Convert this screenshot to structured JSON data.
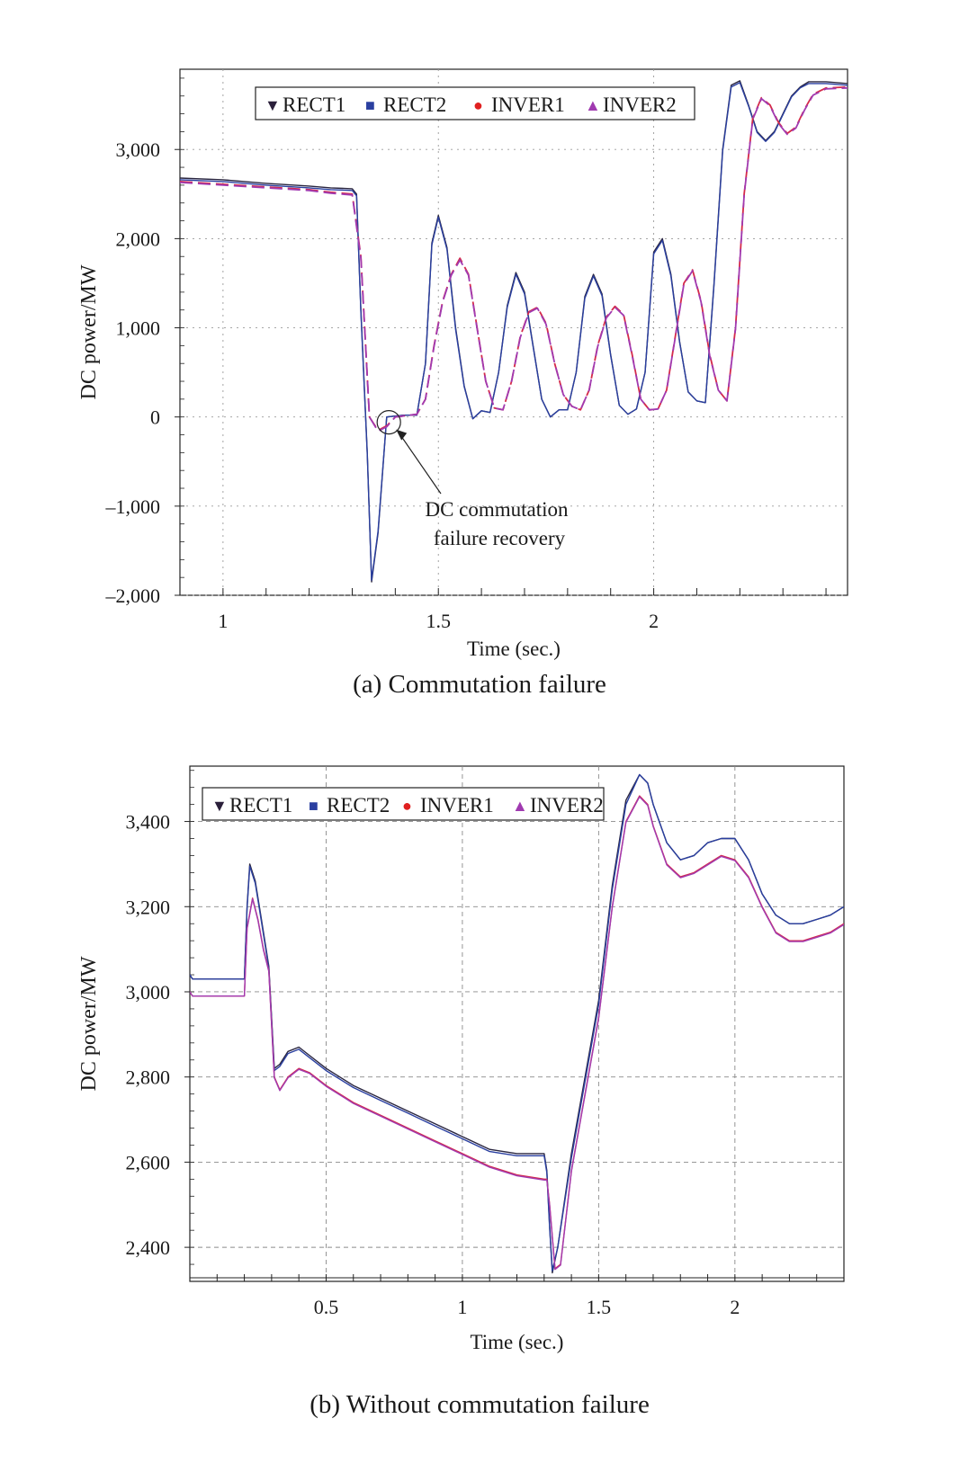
{
  "chart_data": [
    {
      "type": "line",
      "caption": "(a) Commutation failure",
      "xlabel": "Time (sec.)",
      "ylabel": "DC power/MW",
      "xlim": [
        0.9,
        2.45
      ],
      "ylim": [
        -2000,
        3900
      ],
      "xticks": [
        1,
        1.5,
        2
      ],
      "xtick_labels": [
        "1",
        "1.5",
        "2"
      ],
      "yticks": [
        -2000,
        -1000,
        0,
        1000,
        2000,
        3000
      ],
      "ytick_labels": [
        "–2,000",
        "–1,000",
        "0",
        "1,000",
        "2,000",
        "3,000"
      ],
      "grid": "dotted",
      "legend_position": "top-left",
      "legend": [
        {
          "marker": "▼",
          "label": "RECT1",
          "color": "#2a1f3a"
        },
        {
          "marker": "■",
          "label": "RECT2",
          "color": "#2a3fa0"
        },
        {
          "marker": "●",
          "label": "INVER1",
          "color": "#e02020"
        },
        {
          "marker": "▲",
          "label": "INVER2",
          "color": "#a03ab0"
        }
      ],
      "annotation": {
        "line1": "DC commutation",
        "line2": "failure recovery",
        "point": [
          1.385,
          -60
        ]
      },
      "series": [
        {
          "name": "RECT1",
          "color": "#2a2640",
          "dash": "solid",
          "x": [
            0.9,
            1.0,
            1.1,
            1.2,
            1.25,
            1.3,
            1.31,
            1.32,
            1.335,
            1.345,
            1.36,
            1.38,
            1.42,
            1.45,
            1.47,
            1.485,
            1.5,
            1.52,
            1.54,
            1.56,
            1.58,
            1.6,
            1.62,
            1.64,
            1.66,
            1.68,
            1.7,
            1.72,
            1.74,
            1.76,
            1.78,
            1.8,
            1.82,
            1.84,
            1.86,
            1.88,
            1.9,
            1.92,
            1.94,
            1.96,
            1.98,
            2.0,
            2.02,
            2.04,
            2.06,
            2.08,
            2.1,
            2.12,
            2.14,
            2.16,
            2.18,
            2.2,
            2.22,
            2.24,
            2.26,
            2.28,
            2.3,
            2.32,
            2.34,
            2.36,
            2.38,
            2.4,
            2.45
          ],
          "y": [
            2680,
            2660,
            2620,
            2590,
            2570,
            2560,
            2500,
            1200,
            -400,
            -1850,
            -1300,
            0,
            20,
            20,
            600,
            1950,
            2260,
            1900,
            1000,
            350,
            -20,
            70,
            50,
            500,
            1250,
            1620,
            1400,
            800,
            200,
            0,
            80,
            80,
            500,
            1350,
            1600,
            1380,
            700,
            130,
            30,
            90,
            500,
            1850,
            2000,
            1600,
            850,
            280,
            180,
            160,
            1500,
            3000,
            3720,
            3770,
            3500,
            3200,
            3100,
            3200,
            3400,
            3600,
            3700,
            3760,
            3760,
            3760,
            3740
          ]
        },
        {
          "name": "RECT2",
          "color": "#2a3fa0",
          "dash": "solid",
          "x": [
            0.9,
            1.0,
            1.1,
            1.2,
            1.25,
            1.3,
            1.31,
            1.32,
            1.335,
            1.345,
            1.36,
            1.38,
            1.42,
            1.45,
            1.47,
            1.485,
            1.5,
            1.52,
            1.54,
            1.56,
            1.58,
            1.6,
            1.62,
            1.64,
            1.66,
            1.68,
            1.7,
            1.72,
            1.74,
            1.76,
            1.78,
            1.8,
            1.82,
            1.84,
            1.86,
            1.88,
            1.9,
            1.92,
            1.94,
            1.96,
            1.98,
            2.0,
            2.02,
            2.04,
            2.06,
            2.08,
            2.1,
            2.12,
            2.14,
            2.16,
            2.18,
            2.2,
            2.22,
            2.24,
            2.26,
            2.28,
            2.3,
            2.32,
            2.34,
            2.36,
            2.38,
            2.4,
            2.45
          ],
          "y": [
            2660,
            2640,
            2600,
            2570,
            2550,
            2540,
            2480,
            1180,
            -420,
            -1830,
            -1280,
            0,
            20,
            20,
            600,
            1930,
            2240,
            1880,
            980,
            340,
            -20,
            70,
            50,
            500,
            1230,
            1600,
            1380,
            790,
            200,
            0,
            80,
            80,
            500,
            1330,
            1580,
            1360,
            690,
            130,
            30,
            90,
            500,
            1830,
            1980,
            1580,
            840,
            280,
            180,
            160,
            1480,
            2980,
            3700,
            3750,
            3490,
            3190,
            3090,
            3190,
            3390,
            3590,
            3690,
            3740,
            3740,
            3740,
            3720
          ]
        },
        {
          "name": "INVER1",
          "color": "#d42a4a",
          "dash": "dashed",
          "x": [
            0.9,
            1.0,
            1.1,
            1.2,
            1.25,
            1.3,
            1.32,
            1.34,
            1.36,
            1.38,
            1.4,
            1.45,
            1.47,
            1.49,
            1.51,
            1.53,
            1.55,
            1.57,
            1.59,
            1.61,
            1.63,
            1.65,
            1.67,
            1.69,
            1.71,
            1.73,
            1.75,
            1.77,
            1.79,
            1.81,
            1.83,
            1.85,
            1.87,
            1.89,
            1.91,
            1.93,
            1.95,
            1.97,
            1.99,
            2.01,
            2.03,
            2.05,
            2.07,
            2.09,
            2.11,
            2.13,
            2.15,
            2.17,
            2.19,
            2.21,
            2.23,
            2.25,
            2.27,
            2.29,
            2.31,
            2.33,
            2.35,
            2.37,
            2.4,
            2.45
          ],
          "y": [
            2640,
            2610,
            2580,
            2550,
            2520,
            2500,
            1800,
            0,
            -150,
            -100,
            0,
            30,
            200,
            800,
            1300,
            1600,
            1780,
            1600,
            1000,
            400,
            100,
            80,
            400,
            900,
            1180,
            1230,
            1050,
            600,
            250,
            120,
            80,
            300,
            800,
            1120,
            1240,
            1150,
            700,
            200,
            80,
            90,
            300,
            900,
            1500,
            1650,
            1300,
            700,
            300,
            180,
            1000,
            2500,
            3350,
            3580,
            3500,
            3300,
            3180,
            3250,
            3450,
            3620,
            3690,
            3700
          ]
        },
        {
          "name": "INVER2",
          "color": "#a13ab0",
          "dash": "dashed",
          "x": [
            0.9,
            1.0,
            1.1,
            1.2,
            1.25,
            1.3,
            1.32,
            1.34,
            1.36,
            1.38,
            1.4,
            1.45,
            1.47,
            1.49,
            1.51,
            1.53,
            1.55,
            1.57,
            1.59,
            1.61,
            1.63,
            1.65,
            1.67,
            1.69,
            1.71,
            1.73,
            1.75,
            1.77,
            1.79,
            1.81,
            1.83,
            1.85,
            1.87,
            1.89,
            1.91,
            1.93,
            1.95,
            1.97,
            1.99,
            2.01,
            2.03,
            2.05,
            2.07,
            2.09,
            2.11,
            2.13,
            2.15,
            2.17,
            2.19,
            2.21,
            2.23,
            2.25,
            2.27,
            2.29,
            2.31,
            2.33,
            2.35,
            2.37,
            2.4,
            2.45
          ],
          "y": [
            2630,
            2600,
            2570,
            2540,
            2510,
            2490,
            1780,
            0,
            -160,
            -110,
            0,
            30,
            200,
            790,
            1290,
            1590,
            1760,
            1590,
            990,
            400,
            100,
            80,
            400,
            890,
            1170,
            1220,
            1040,
            600,
            250,
            120,
            80,
            300,
            790,
            1110,
            1230,
            1140,
            690,
            200,
            80,
            90,
            300,
            890,
            1490,
            1640,
            1290,
            690,
            300,
            180,
            990,
            2490,
            3340,
            3570,
            3490,
            3290,
            3170,
            3240,
            3440,
            3610,
            3680,
            3690
          ]
        }
      ]
    },
    {
      "type": "line",
      "caption": "(b) Without commutation failure",
      "xlabel": "Time (sec.)",
      "ylabel": "DC power/MW",
      "xlim": [
        0.0,
        2.4
      ],
      "ylim": [
        2320,
        3530
      ],
      "xticks": [
        0.5,
        1,
        1.5,
        2
      ],
      "xtick_labels": [
        "0.5",
        "1",
        "1.5",
        "2"
      ],
      "yticks": [
        2400,
        2600,
        2800,
        3000,
        3200,
        3400
      ],
      "ytick_labels": [
        "2,400",
        "2,600",
        "2,800",
        "3,000",
        "3,200",
        "3,400"
      ],
      "grid": "dashed",
      "legend_position": "top-left",
      "legend": [
        {
          "marker": "▼",
          "label": "RECT1",
          "color": "#2a1f3a"
        },
        {
          "marker": "■",
          "label": "RECT2",
          "color": "#2a3fa0"
        },
        {
          "marker": "●",
          "label": "INVER1",
          "color": "#e02020"
        },
        {
          "marker": "▲",
          "label": "INVER2",
          "color": "#a03ab0"
        }
      ],
      "series": [
        {
          "name": "RECT1",
          "color": "#2a2640",
          "dash": "solid",
          "x": [
            0.0,
            0.01,
            0.2,
            0.21,
            0.22,
            0.24,
            0.26,
            0.29,
            0.31,
            0.33,
            0.36,
            0.4,
            0.44,
            0.5,
            0.6,
            0.7,
            0.8,
            0.9,
            1.0,
            1.1,
            1.2,
            1.3,
            1.31,
            1.32,
            1.33,
            1.35,
            1.4,
            1.5,
            1.55,
            1.6,
            1.65,
            1.68,
            1.7,
            1.75,
            1.8,
            1.85,
            1.9,
            1.95,
            2.0,
            2.05,
            2.1,
            2.15,
            2.2,
            2.25,
            2.3,
            2.35,
            2.4
          ],
          "y": [
            3040,
            3030,
            3030,
            3200,
            3300,
            3260,
            3180,
            3060,
            2820,
            2830,
            2860,
            2870,
            2850,
            2820,
            2780,
            2750,
            2720,
            2690,
            2660,
            2630,
            2620,
            2620,
            2580,
            2450,
            2340,
            2400,
            2620,
            2980,
            3250,
            3450,
            3510,
            3490,
            3440,
            3350,
            3310,
            3320,
            3350,
            3360,
            3360,
            3310,
            3230,
            3180,
            3160,
            3160,
            3170,
            3180,
            3200
          ]
        },
        {
          "name": "RECT2",
          "color": "#2a3fa0",
          "dash": "solid",
          "x": [
            0.0,
            0.01,
            0.2,
            0.21,
            0.22,
            0.24,
            0.26,
            0.29,
            0.31,
            0.33,
            0.36,
            0.4,
            0.44,
            0.5,
            0.6,
            0.7,
            0.8,
            0.9,
            1.0,
            1.1,
            1.2,
            1.3,
            1.31,
            1.32,
            1.33,
            1.35,
            1.4,
            1.5,
            1.55,
            1.6,
            1.65,
            1.68,
            1.7,
            1.75,
            1.8,
            1.85,
            1.9,
            1.95,
            2.0,
            2.05,
            2.1,
            2.15,
            2.2,
            2.25,
            2.3,
            2.35,
            2.4
          ],
          "y": [
            3040,
            3030,
            3030,
            3195,
            3295,
            3255,
            3175,
            3055,
            2815,
            2825,
            2855,
            2865,
            2845,
            2815,
            2775,
            2745,
            2715,
            2685,
            2655,
            2625,
            2615,
            2615,
            2575,
            2445,
            2345,
            2400,
            2610,
            2970,
            3240,
            3440,
            3510,
            3490,
            3440,
            3350,
            3310,
            3320,
            3350,
            3360,
            3360,
            3310,
            3230,
            3180,
            3160,
            3160,
            3170,
            3180,
            3200
          ]
        },
        {
          "name": "INVER1",
          "color": "#d42a4a",
          "dash": "solid",
          "x": [
            0.0,
            0.01,
            0.2,
            0.21,
            0.23,
            0.25,
            0.27,
            0.29,
            0.31,
            0.33,
            0.36,
            0.4,
            0.44,
            0.5,
            0.6,
            0.7,
            0.8,
            0.9,
            1.0,
            1.1,
            1.2,
            1.3,
            1.31,
            1.32,
            1.34,
            1.36,
            1.4,
            1.5,
            1.55,
            1.6,
            1.65,
            1.68,
            1.7,
            1.75,
            1.8,
            1.85,
            1.9,
            1.95,
            2.0,
            2.05,
            2.1,
            2.15,
            2.2,
            2.25,
            2.3,
            2.35,
            2.4
          ],
          "y": [
            3000,
            2990,
            2990,
            3150,
            3220,
            3170,
            3100,
            3050,
            2800,
            2770,
            2800,
            2820,
            2810,
            2780,
            2740,
            2710,
            2680,
            2650,
            2620,
            2590,
            2570,
            2560,
            2560,
            2500,
            2350,
            2360,
            2580,
            2940,
            3200,
            3400,
            3460,
            3440,
            3390,
            3300,
            3270,
            3280,
            3300,
            3320,
            3310,
            3270,
            3200,
            3140,
            3120,
            3120,
            3130,
            3140,
            3160
          ]
        },
        {
          "name": "INVER2",
          "color": "#a13ab0",
          "dash": "solid",
          "x": [
            0.0,
            0.01,
            0.2,
            0.21,
            0.23,
            0.25,
            0.27,
            0.29,
            0.31,
            0.33,
            0.36,
            0.4,
            0.44,
            0.5,
            0.6,
            0.7,
            0.8,
            0.9,
            1.0,
            1.1,
            1.2,
            1.3,
            1.31,
            1.32,
            1.34,
            1.36,
            1.4,
            1.5,
            1.55,
            1.6,
            1.65,
            1.68,
            1.7,
            1.75,
            1.8,
            1.85,
            1.9,
            1.95,
            2.0,
            2.05,
            2.1,
            2.15,
            2.2,
            2.25,
            2.3,
            2.35,
            2.4
          ],
          "y": [
            3000,
            2990,
            2990,
            3148,
            3218,
            3168,
            3098,
            3048,
            2798,
            2768,
            2798,
            2818,
            2808,
            2778,
            2738,
            2708,
            2678,
            2648,
            2618,
            2588,
            2568,
            2558,
            2558,
            2498,
            2348,
            2358,
            2578,
            2938,
            3198,
            3398,
            3458,
            3438,
            3388,
            3298,
            3268,
            3278,
            3298,
            3318,
            3308,
            3268,
            3198,
            3138,
            3118,
            3118,
            3128,
            3138,
            3158
          ]
        }
      ]
    }
  ]
}
